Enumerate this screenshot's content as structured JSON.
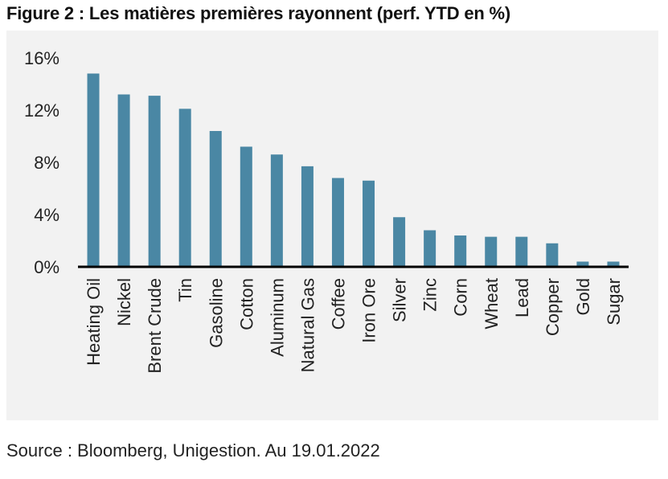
{
  "figure": {
    "title": "Figure 2 : Les matières premières rayonnent (perf. YTD en %)",
    "source": "Source : Bloomberg, Unigestion. Au 19.01.2022"
  },
  "colors": {
    "bar": "#4a87a4",
    "axis": "#000000",
    "background": "#f2f2f2"
  },
  "chart_data": {
    "type": "bar",
    "title": "Figure 2 : Les matières premières rayonnent (perf. YTD en %)",
    "xlabel": "",
    "ylabel": "",
    "ylim": [
      0,
      16
    ],
    "yticks": [
      0,
      4,
      8,
      12,
      16
    ],
    "ytick_labels": [
      "0%",
      "4%",
      "8%",
      "12%",
      "16%"
    ],
    "grid": false,
    "legend": "none",
    "categories": [
      "Heating Oil",
      "Nickel",
      "Brent Crude",
      "Tin",
      "Gasoline",
      "Cotton",
      "Aluminum",
      "Natural Gas",
      "Coffee",
      "Iron Ore",
      "Silver",
      "Zinc",
      "Corn",
      "Wheat",
      "Lead",
      "Copper",
      "Gold",
      "Sugar"
    ],
    "values": [
      14.8,
      13.2,
      13.1,
      12.1,
      10.4,
      9.2,
      8.6,
      7.7,
      6.8,
      6.6,
      3.8,
      2.8,
      2.4,
      2.3,
      2.3,
      1.8,
      0.4,
      0.4
    ]
  }
}
